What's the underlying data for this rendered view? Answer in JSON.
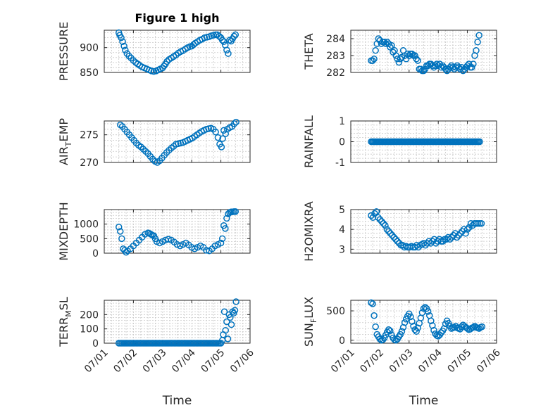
{
  "figure": {
    "title": "Figure 1 high",
    "colors": {
      "marker": "#0072bd",
      "axis": "#262626",
      "grid": "#c8c8c8"
    }
  },
  "chart_data": [
    {
      "type": "scatter",
      "title": "Figure 1 high",
      "ylabel": {
        "main": "PRESSURE",
        "sub": "",
        "rest": ""
      },
      "xlim": [
        0,
        5
      ],
      "ylim": [
        850,
        935
      ],
      "yticks": [
        850,
        900
      ],
      "show_xticklabels": false,
      "xlabel": "",
      "x": [
        0.5,
        0.53,
        0.58,
        0.63,
        0.68,
        0.72,
        0.78,
        0.85,
        0.92,
        1.0,
        1.08,
        1.15,
        1.22,
        1.3,
        1.38,
        1.46,
        1.54,
        1.62,
        1.7,
        1.78,
        1.85,
        1.92,
        2.0,
        2.05,
        2.1,
        2.15,
        2.22,
        2.3,
        2.38,
        2.46,
        2.54,
        2.62,
        2.7,
        2.78,
        2.86,
        2.94,
        3.0,
        3.06,
        3.12,
        3.2,
        3.28,
        3.36,
        3.44,
        3.52,
        3.6,
        3.68,
        3.75,
        3.82,
        3.88,
        3.94,
        4.0,
        4.05,
        4.1,
        4.15,
        4.2,
        4.25,
        4.3,
        4.35,
        4.4,
        4.45,
        4.5
      ],
      "y": [
        930,
        925,
        920,
        912,
        903,
        895,
        888,
        883,
        879,
        874,
        870,
        867,
        864,
        861,
        859,
        857,
        855,
        853,
        852,
        853,
        855,
        857,
        859,
        863,
        867,
        872,
        876,
        879,
        882,
        885,
        889,
        892,
        894,
        897,
        900,
        902,
        903,
        906,
        909,
        912,
        915,
        917,
        920,
        921,
        922,
        924,
        925,
        926,
        926,
        923,
        920,
        915,
        912,
        905,
        895,
        888,
        915,
        913,
        918,
        923,
        926
      ]
    },
    {
      "type": "scatter",
      "title": "",
      "ylabel": {
        "main": "THETA",
        "sub": "",
        "rest": ""
      },
      "xlim": [
        0,
        5
      ],
      "ylim": [
        282,
        284.5
      ],
      "yticks": [
        282,
        283,
        284
      ],
      "show_xticklabels": false,
      "xlabel": "",
      "x": [
        0.7,
        0.75,
        0.8,
        0.85,
        0.9,
        0.95,
        1.0,
        1.05,
        1.1,
        1.15,
        1.2,
        1.25,
        1.3,
        1.35,
        1.4,
        1.45,
        1.5,
        1.55,
        1.6,
        1.65,
        1.7,
        1.75,
        1.8,
        1.85,
        1.9,
        1.95,
        2.0,
        2.05,
        2.1,
        2.15,
        2.2,
        2.25,
        2.3,
        2.35,
        2.4,
        2.45,
        2.5,
        2.55,
        2.6,
        2.65,
        2.7,
        2.75,
        2.8,
        2.85,
        2.9,
        2.95,
        3.0,
        3.05,
        3.1,
        3.15,
        3.2,
        3.25,
        3.3,
        3.35,
        3.4,
        3.45,
        3.5,
        3.55,
        3.6,
        3.65,
        3.7,
        3.75,
        3.8,
        3.85,
        3.9,
        3.95,
        4.0,
        4.05,
        4.1,
        4.15,
        4.2,
        4.25,
        4.3,
        4.35,
        4.4
      ],
      "y": [
        282.7,
        282.7,
        282.8,
        283.3,
        283.7,
        284.0,
        283.9,
        283.7,
        283.8,
        283.8,
        283.7,
        283.8,
        283.7,
        283.5,
        283.6,
        283.2,
        283.3,
        283.0,
        282.8,
        282.6,
        282.8,
        282.9,
        283.3,
        283.0,
        282.8,
        283.1,
        283.0,
        283.1,
        283.1,
        283.0,
        283.0,
        282.8,
        282.7,
        282.2,
        282.2,
        282.1,
        282.1,
        282.2,
        282.4,
        282.4,
        282.5,
        282.5,
        282.4,
        282.3,
        282.4,
        282.5,
        282.4,
        282.5,
        282.3,
        282.4,
        282.3,
        282.2,
        282.1,
        282.2,
        282.3,
        282.4,
        282.3,
        282.2,
        282.3,
        282.4,
        282.3,
        282.2,
        282.3,
        282.1,
        282.2,
        282.3,
        282.4,
        282.5,
        282.3,
        282.3,
        282.5,
        283.0,
        283.3,
        283.8,
        284.2
      ]
    },
    {
      "type": "scatter",
      "title": "",
      "ylabel": {
        "main": "AIR",
        "sub": "T",
        "rest": "EMP"
      },
      "xlim": [
        0,
        5
      ],
      "ylim": [
        270,
        277.5
      ],
      "yticks": [
        270,
        275
      ],
      "show_xticklabels": false,
      "xlabel": "",
      "x": [
        0.55,
        0.62,
        0.7,
        0.78,
        0.86,
        0.94,
        1.02,
        1.1,
        1.18,
        1.26,
        1.34,
        1.42,
        1.5,
        1.58,
        1.66,
        1.74,
        1.82,
        1.9,
        1.98,
        2.06,
        2.14,
        2.22,
        2.3,
        2.38,
        2.46,
        2.54,
        2.62,
        2.7,
        2.78,
        2.86,
        2.94,
        3.02,
        3.1,
        3.18,
        3.26,
        3.34,
        3.42,
        3.5,
        3.58,
        3.66,
        3.74,
        3.82,
        3.9,
        3.96,
        4.02,
        4.06,
        4.1,
        4.16,
        4.22,
        4.3,
        4.38,
        4.46,
        4.52
      ],
      "y": [
        276.8,
        276.5,
        276.0,
        275.5,
        275.0,
        274.5,
        274.0,
        273.5,
        273.1,
        272.8,
        272.4,
        272.0,
        271.6,
        271.1,
        270.6,
        270.2,
        270.0,
        270.3,
        270.8,
        271.3,
        271.8,
        272.2,
        272.6,
        272.9,
        273.3,
        273.4,
        273.5,
        273.6,
        273.8,
        274.0,
        274.2,
        274.4,
        274.7,
        275.0,
        275.3,
        275.6,
        275.8,
        276.0,
        276.1,
        276.2,
        276.0,
        275.5,
        274.5,
        273.3,
        272.8,
        274.3,
        275.8,
        275.2,
        276.0,
        276.3,
        276.5,
        277.0,
        277.3
      ]
    },
    {
      "type": "scatter",
      "title": "",
      "ylabel": {
        "main": "RAINFALL",
        "sub": "",
        "rest": ""
      },
      "xlim": [
        0,
        5
      ],
      "ylim": [
        -1,
        1
      ],
      "yticks": [
        -1,
        0,
        1
      ],
      "show_xticklabels": false,
      "xlabel": "",
      "x": [
        0.7,
        0.74,
        0.78,
        0.82,
        0.86,
        0.9,
        0.94,
        0.98,
        1.02,
        1.06,
        1.1,
        1.14,
        1.18,
        1.22,
        1.26,
        1.3,
        1.34,
        1.38,
        1.42,
        1.46,
        1.5,
        1.54,
        1.58,
        1.62,
        1.66,
        1.7,
        1.74,
        1.78,
        1.82,
        1.86,
        1.9,
        1.94,
        1.98,
        2.02,
        2.06,
        2.1,
        2.14,
        2.18,
        2.22,
        2.26,
        2.3,
        2.34,
        2.38,
        2.42,
        2.46,
        2.5,
        2.54,
        2.58,
        2.62,
        2.66,
        2.7,
        2.74,
        2.78,
        2.82,
        2.86,
        2.9,
        2.94,
        2.98,
        3.02,
        3.06,
        3.1,
        3.14,
        3.18,
        3.22,
        3.26,
        3.3,
        3.34,
        3.38,
        3.42,
        3.46,
        3.5,
        3.54,
        3.58,
        3.62,
        3.66,
        3.7,
        3.74,
        3.78,
        3.82,
        3.86,
        3.9,
        3.94,
        3.98,
        4.02,
        4.06,
        4.1,
        4.14,
        4.18,
        4.22,
        4.26,
        4.3,
        4.34,
        4.38,
        4.42
      ],
      "y": [
        0,
        0,
        0,
        0,
        0,
        0,
        0,
        0,
        0,
        0,
        0,
        0,
        0,
        0,
        0,
        0,
        0,
        0,
        0,
        0,
        0,
        0,
        0,
        0,
        0,
        0,
        0,
        0,
        0,
        0,
        0,
        0,
        0,
        0,
        0,
        0,
        0,
        0,
        0,
        0,
        0,
        0,
        0,
        0,
        0,
        0,
        0,
        0,
        0,
        0,
        0,
        0,
        0,
        0,
        0,
        0,
        0,
        0,
        0,
        0,
        0,
        0,
        0,
        0,
        0,
        0,
        0,
        0,
        0,
        0,
        0,
        0,
        0,
        0,
        0,
        0,
        0,
        0,
        0,
        0,
        0,
        0,
        0,
        0,
        0,
        0,
        0,
        0,
        0,
        0,
        0,
        0,
        0,
        0
      ]
    },
    {
      "type": "scatter",
      "title": "",
      "ylabel": {
        "main": "MIXDEPTH",
        "sub": "",
        "rest": ""
      },
      "xlim": [
        0,
        5
      ],
      "ylim": [
        0,
        1500
      ],
      "yticks": [
        0,
        500,
        1000
      ],
      "show_xticklabels": false,
      "xlabel": "",
      "x": [
        0.5,
        0.55,
        0.6,
        0.65,
        0.7,
        0.75,
        0.8,
        0.9,
        1.0,
        1.1,
        1.2,
        1.3,
        1.4,
        1.5,
        1.55,
        1.6,
        1.65,
        1.7,
        1.75,
        1.8,
        1.9,
        2.0,
        2.1,
        2.2,
        2.3,
        2.4,
        2.5,
        2.6,
        2.7,
        2.8,
        2.9,
        3.0,
        3.1,
        3.2,
        3.3,
        3.4,
        3.5,
        3.6,
        3.7,
        3.8,
        3.9,
        4.0,
        4.05,
        4.1,
        4.15,
        4.2,
        4.25,
        4.3,
        4.35,
        4.4,
        4.45,
        4.5
      ],
      "y": [
        900,
        750,
        500,
        150,
        100,
        30,
        80,
        150,
        250,
        350,
        450,
        550,
        650,
        700,
        680,
        650,
        620,
        600,
        500,
        400,
        350,
        400,
        450,
        480,
        450,
        380,
        300,
        250,
        300,
        350,
        280,
        200,
        150,
        200,
        250,
        200,
        100,
        80,
        150,
        250,
        300,
        350,
        500,
        950,
        850,
        1200,
        1350,
        1400,
        1420,
        1420,
        1430,
        1430
      ]
    },
    {
      "type": "scatter",
      "title": "",
      "ylabel": {
        "main": "H2OMIXRA",
        "sub": "",
        "rest": ""
      },
      "xlim": [
        0,
        5
      ],
      "ylim": [
        2.8,
        5
      ],
      "yticks": [
        3,
        4,
        5
      ],
      "show_xticklabels": false,
      "xlabel": "",
      "x": [
        0.7,
        0.76,
        0.82,
        0.88,
        0.94,
        1.0,
        1.06,
        1.12,
        1.18,
        1.24,
        1.3,
        1.36,
        1.42,
        1.48,
        1.54,
        1.6,
        1.66,
        1.72,
        1.78,
        1.84,
        1.9,
        1.96,
        2.02,
        2.08,
        2.14,
        2.2,
        2.26,
        2.32,
        2.38,
        2.44,
        2.5,
        2.56,
        2.62,
        2.68,
        2.74,
        2.8,
        2.86,
        2.92,
        2.98,
        3.04,
        3.1,
        3.16,
        3.22,
        3.28,
        3.34,
        3.4,
        3.46,
        3.52,
        3.58,
        3.64,
        3.7,
        3.76,
        3.82,
        3.88,
        3.94,
        4.0,
        4.06,
        4.12,
        4.18,
        4.24,
        4.3,
        4.36,
        4.42,
        4.48
      ],
      "y": [
        4.7,
        4.6,
        4.8,
        4.9,
        4.6,
        4.5,
        4.4,
        4.3,
        4.2,
        4.0,
        3.9,
        3.8,
        3.7,
        3.6,
        3.5,
        3.4,
        3.3,
        3.2,
        3.2,
        3.1,
        3.15,
        3.1,
        3.1,
        3.15,
        3.1,
        3.1,
        3.2,
        3.1,
        3.2,
        3.25,
        3.3,
        3.2,
        3.3,
        3.4,
        3.3,
        3.4,
        3.5,
        3.3,
        3.4,
        3.5,
        3.4,
        3.4,
        3.5,
        3.5,
        3.6,
        3.5,
        3.6,
        3.7,
        3.8,
        3.6,
        3.7,
        3.8,
        3.9,
        4.0,
        3.8,
        4.0,
        4.1,
        4.3,
        4.2,
        4.3,
        4.3,
        4.3,
        4.3,
        4.3
      ]
    },
    {
      "type": "scatter",
      "title": "",
      "ylabel": {
        "main": "TERR",
        "sub": "M",
        "rest": "SL"
      },
      "xlim": [
        0,
        5
      ],
      "ylim": [
        0,
        300
      ],
      "yticks": [
        0,
        100,
        200
      ],
      "show_xticklabels": true,
      "xlabel": "Time",
      "x": [
        0.5,
        0.55,
        0.6,
        0.65,
        0.7,
        0.75,
        0.8,
        0.85,
        0.9,
        0.95,
        1.0,
        1.05,
        1.1,
        1.15,
        1.2,
        1.25,
        1.3,
        1.35,
        1.4,
        1.45,
        1.5,
        1.55,
        1.6,
        1.65,
        1.7,
        1.75,
        1.8,
        1.85,
        1.9,
        1.95,
        2.0,
        2.05,
        2.1,
        2.15,
        2.2,
        2.25,
        2.3,
        2.35,
        2.4,
        2.45,
        2.5,
        2.55,
        2.6,
        2.65,
        2.7,
        2.75,
        2.8,
        2.85,
        2.9,
        2.95,
        3.0,
        3.05,
        3.1,
        3.15,
        3.2,
        3.25,
        3.3,
        3.35,
        3.4,
        3.45,
        3.5,
        3.55,
        3.6,
        3.65,
        3.7,
        3.75,
        3.8,
        3.85,
        3.9,
        3.95,
        4.0,
        4.05,
        4.08,
        4.12,
        4.16,
        4.2,
        4.24,
        4.28,
        4.32,
        4.36,
        4.4,
        4.44,
        4.48,
        4.52
      ],
      "y": [
        0,
        0,
        0,
        0,
        0,
        0,
        0,
        0,
        0,
        0,
        0,
        0,
        0,
        0,
        0,
        0,
        0,
        0,
        0,
        0,
        0,
        0,
        0,
        0,
        0,
        0,
        0,
        0,
        0,
        0,
        0,
        0,
        0,
        0,
        0,
        0,
        0,
        0,
        0,
        0,
        0,
        0,
        0,
        0,
        0,
        0,
        0,
        0,
        0,
        0,
        0,
        0,
        0,
        0,
        0,
        0,
        0,
        0,
        0,
        0,
        0,
        0,
        0,
        0,
        0,
        0,
        0,
        0,
        0,
        0,
        0,
        20,
        60,
        220,
        90,
        150,
        30,
        200,
        180,
        130,
        220,
        210,
        230,
        290
      ]
    },
    {
      "type": "scatter",
      "title": "",
      "ylabel": {
        "main": "SUN",
        "sub": "F",
        "rest": "LUX"
      },
      "xlim": [
        0,
        5
      ],
      "ylim": [
        -50,
        680
      ],
      "yticks": [
        0,
        500
      ],
      "show_xticklabels": true,
      "xlabel": "Time",
      "x": [
        0.7,
        0.75,
        0.8,
        0.85,
        0.9,
        0.95,
        1.0,
        1.05,
        1.1,
        1.15,
        1.2,
        1.25,
        1.3,
        1.35,
        1.4,
        1.45,
        1.5,
        1.55,
        1.6,
        1.65,
        1.7,
        1.75,
        1.8,
        1.85,
        1.9,
        1.95,
        2.0,
        2.05,
        2.1,
        2.15,
        2.2,
        2.25,
        2.3,
        2.35,
        2.4,
        2.45,
        2.5,
        2.55,
        2.6,
        2.65,
        2.7,
        2.75,
        2.8,
        2.85,
        2.9,
        2.95,
        3.0,
        3.05,
        3.1,
        3.15,
        3.2,
        3.25,
        3.3,
        3.35,
        3.4,
        3.45,
        3.5,
        3.55,
        3.6,
        3.65,
        3.7,
        3.75,
        3.8,
        3.85,
        3.9,
        3.95,
        4.0,
        4.05,
        4.1,
        4.15,
        4.2,
        4.25,
        4.3,
        4.35,
        4.4,
        4.45,
        4.5
      ],
      "y": [
        640,
        620,
        420,
        230,
        100,
        60,
        20,
        0,
        10,
        40,
        90,
        140,
        180,
        160,
        90,
        40,
        10,
        0,
        20,
        60,
        100,
        150,
        220,
        300,
        360,
        410,
        450,
        400,
        320,
        240,
        180,
        150,
        210,
        290,
        380,
        470,
        540,
        560,
        540,
        490,
        420,
        330,
        250,
        170,
        110,
        80,
        70,
        90,
        130,
        160,
        200,
        280,
        330,
        290,
        240,
        200,
        210,
        220,
        240,
        210,
        200,
        190,
        230,
        260,
        240,
        220,
        200,
        180,
        190,
        210,
        220,
        240,
        220,
        210,
        200,
        220,
        230
      ]
    }
  ],
  "xaxis": {
    "ticks": [
      0,
      1,
      2,
      3,
      4,
      5
    ],
    "labels": [
      "07/01",
      "07/02",
      "07/03",
      "07/04",
      "07/05",
      "07/06"
    ]
  }
}
